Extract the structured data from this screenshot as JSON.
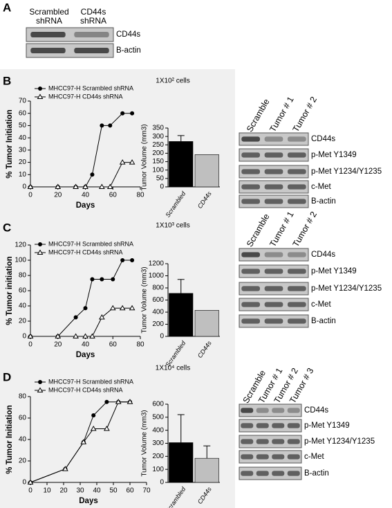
{
  "panel_a": {
    "letter": "A",
    "columns": [
      "Scrambled shRNA",
      "CD44s shRNA"
    ],
    "rows": [
      "CD44s",
      "B-actin"
    ]
  },
  "panels": [
    {
      "letter": "B",
      "cells": "1X10² cells",
      "blot_columns": [
        "Scramble",
        "Tumor # 1",
        "Tumor # 2"
      ],
      "blot_rows": [
        "CD44s",
        "p-Met Y1349",
        "p-Met Y1234/Y1235",
        "c-Met",
        "B-actin"
      ]
    },
    {
      "letter": "C",
      "cells": "1X10³ cells",
      "blot_columns": [
        "Scramble",
        "Tumor # 1",
        "Tumor # 2"
      ],
      "blot_rows": [
        "CD44s",
        "p-Met Y1349",
        "p-Met Y1234/Y1235",
        "c-Met",
        "B-actin"
      ]
    },
    {
      "letter": "D",
      "cells": "1X10⁴ cells",
      "blot_columns": [
        "Scramble",
        "Tumor # 1",
        "Tumor # 2",
        "Tumor # 3"
      ],
      "blot_rows": [
        "CD44s",
        "p-Met Y1349",
        "p-Met Y1234/Y1235",
        "c-Met",
        "B-actin"
      ]
    }
  ],
  "chart_data": [
    {
      "type": "line",
      "xlabel": "Days",
      "ylabel": "% Tumor Initiation",
      "x": [
        0,
        20,
        33,
        40,
        45,
        52,
        58,
        67,
        74
      ],
      "series": [
        {
          "name": "MHCC97-H Scrambled shRNA",
          "color": "#000000",
          "marker": "circle",
          "values": [
            0,
            0,
            0,
            0,
            10,
            50,
            50,
            60,
            60
          ]
        },
        {
          "name": "MHCC97-H CD44s shRNA",
          "color": "#000000",
          "marker": "triangle",
          "values": [
            0,
            0,
            0,
            0,
            null,
            0,
            0,
            20,
            20
          ]
        }
      ],
      "xlim": [
        0,
        80
      ],
      "xticks": [
        0,
        20,
        40,
        60,
        80
      ],
      "ylim": [
        0,
        70
      ],
      "yticks": [
        0,
        10,
        20,
        30,
        40,
        50,
        60,
        70
      ]
    },
    {
      "type": "bar",
      "ylabel": "Tumor Volume (mm3)",
      "categories": [
        "Scrambled",
        "CD44s"
      ],
      "values": [
        270,
        192
      ],
      "errors": [
        35,
        null
      ],
      "colors": [
        "#000000",
        "#bfbfbf"
      ],
      "ylim": [
        0,
        350
      ],
      "yticks": [
        0,
        50,
        100,
        150,
        200,
        250,
        300,
        350
      ]
    },
    {
      "type": "line",
      "xlabel": "Days",
      "ylabel": "% Tumor initiation",
      "x": [
        0,
        20,
        33,
        40,
        45,
        52,
        60,
        67,
        74
      ],
      "series": [
        {
          "name": "MHCC97-H Scrambled shRNA",
          "color": "#000000",
          "marker": "circle",
          "values": [
            0,
            0,
            25,
            37,
            75,
            75,
            75,
            100,
            100
          ]
        },
        {
          "name": "MHCC97-H CD44s shRNA",
          "color": "#000000",
          "marker": "triangle",
          "values": [
            0,
            0,
            0,
            0,
            0,
            25,
            37,
            37,
            37
          ]
        }
      ],
      "xlim": [
        0,
        80
      ],
      "xticks": [
        0,
        20,
        40,
        60,
        80
      ],
      "ylim": [
        0,
        120
      ],
      "yticks": [
        0,
        20,
        40,
        60,
        80,
        100,
        120
      ]
    },
    {
      "type": "bar",
      "ylabel": "Tumor Volume (mm3)",
      "categories": [
        "Scrambled",
        "CD44s"
      ],
      "values": [
        710,
        430
      ],
      "errors": [
        230,
        null
      ],
      "colors": [
        "#000000",
        "#bfbfbf"
      ],
      "ylim": [
        0,
        1200
      ],
      "yticks": [
        0,
        200,
        400,
        600,
        800,
        1000,
        1200
      ]
    },
    {
      "type": "line",
      "xlabel": "Days",
      "ylabel": "% Tumor Initiation",
      "x": [
        0,
        21,
        32,
        38,
        46,
        53,
        60
      ],
      "series": [
        {
          "name": "MHCC97-H Scrambled shRNA",
          "color": "#000000",
          "marker": "circle",
          "values": [
            0,
            12.5,
            37.5,
            62.5,
            75,
            75,
            75
          ]
        },
        {
          "name": "MHCC97-H CD44s shRNA",
          "color": "#000000",
          "marker": "triangle",
          "values": [
            0,
            12.5,
            37.5,
            50,
            50,
            75,
            75
          ]
        }
      ],
      "xlim": [
        0,
        70
      ],
      "xticks": [
        0,
        10,
        20,
        30,
        40,
        50,
        60,
        70
      ],
      "ylim": [
        0,
        80
      ],
      "yticks": [
        0,
        20,
        40,
        60,
        80
      ]
    },
    {
      "type": "bar",
      "ylabel": "Tumor Volume (mm3)",
      "categories": [
        "Scrambled",
        "CD44s"
      ],
      "values": [
        305,
        185
      ],
      "errors": [
        215,
        95
      ],
      "colors": [
        "#000000",
        "#bfbfbf"
      ],
      "ylim": [
        0,
        600
      ],
      "yticks": [
        0,
        100,
        200,
        300,
        400,
        500,
        600
      ]
    }
  ]
}
